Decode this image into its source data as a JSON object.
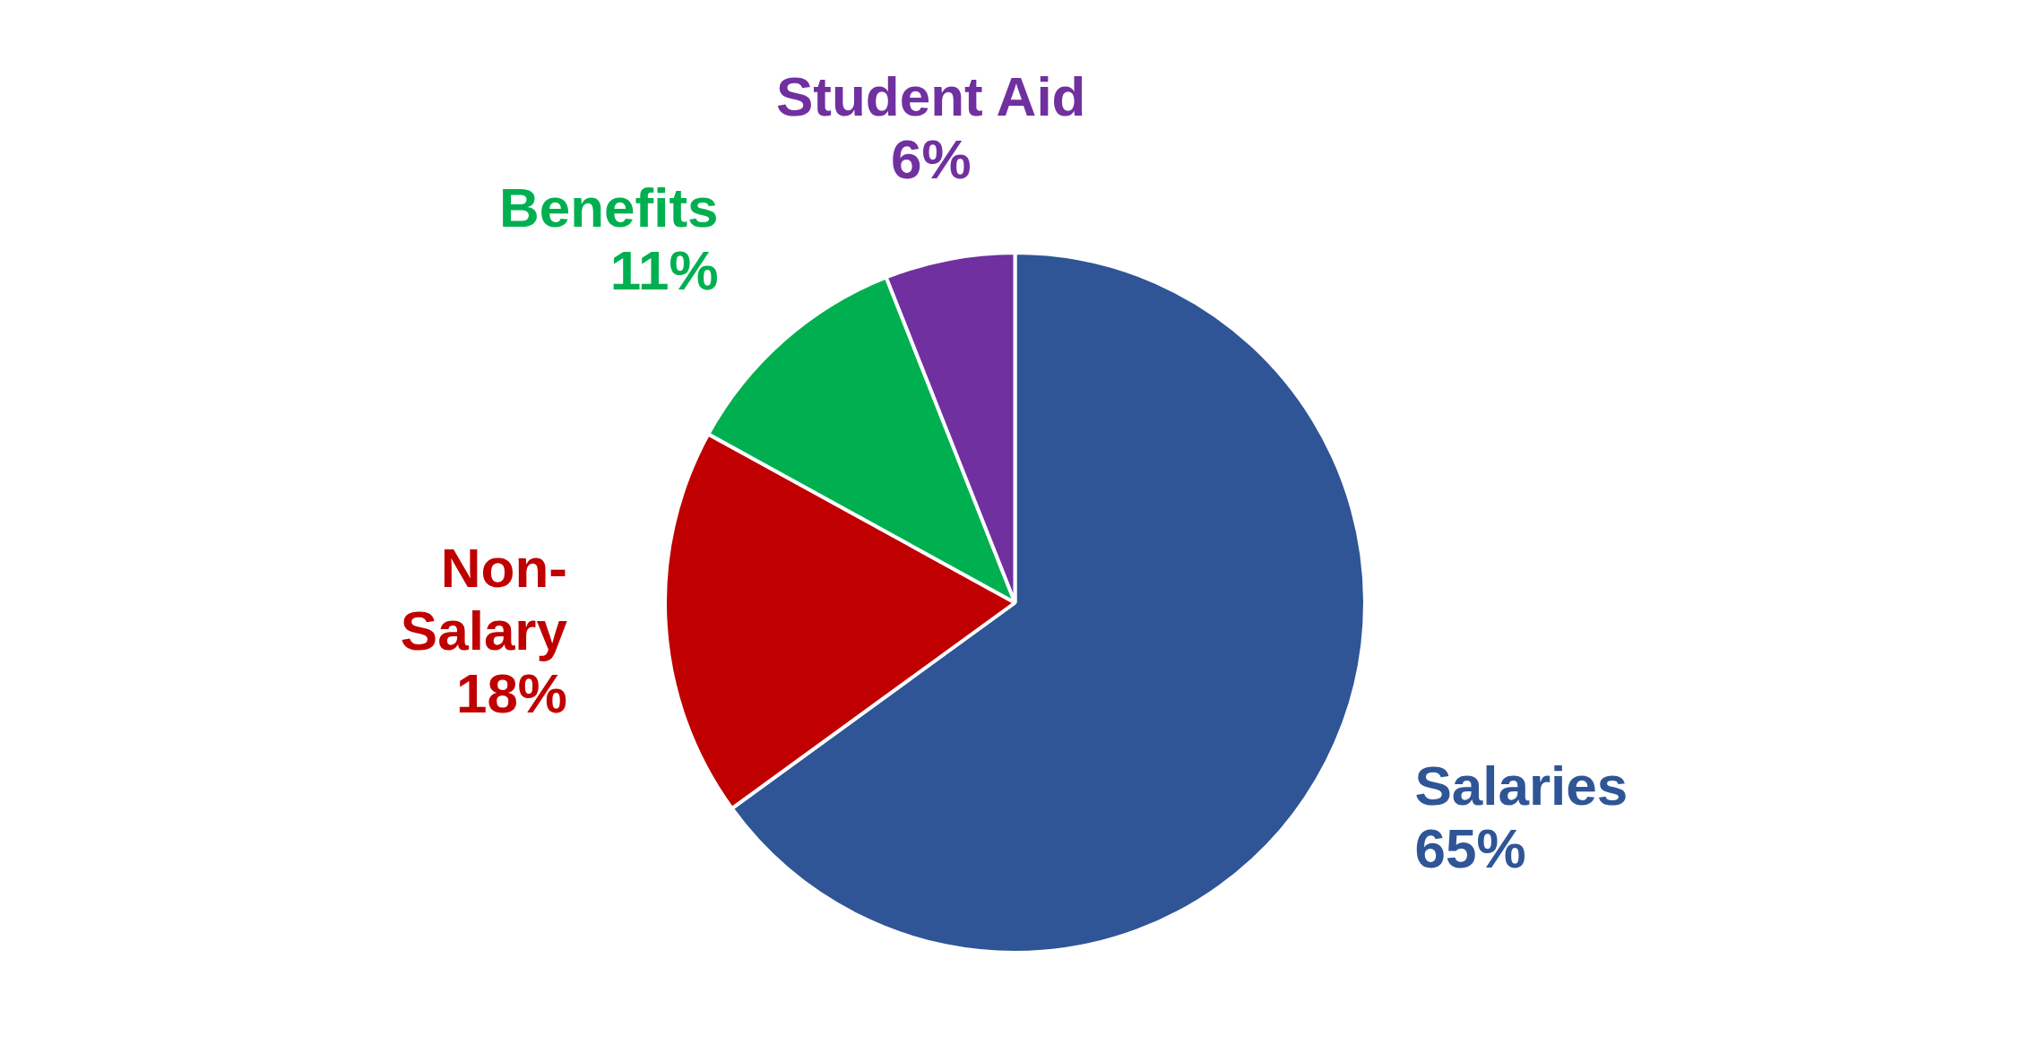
{
  "chart_data": {
    "type": "pie",
    "categories": [
      "Salaries",
      "Non-Salary",
      "Benefits",
      "Student Aid"
    ],
    "values": [
      65,
      18,
      11,
      6
    ],
    "value_labels": [
      "65%",
      "18%",
      "11%",
      "6%"
    ],
    "colors": [
      "#2f5597",
      "#c00000",
      "#00b050",
      "#7030a0"
    ],
    "legend": false
  }
}
